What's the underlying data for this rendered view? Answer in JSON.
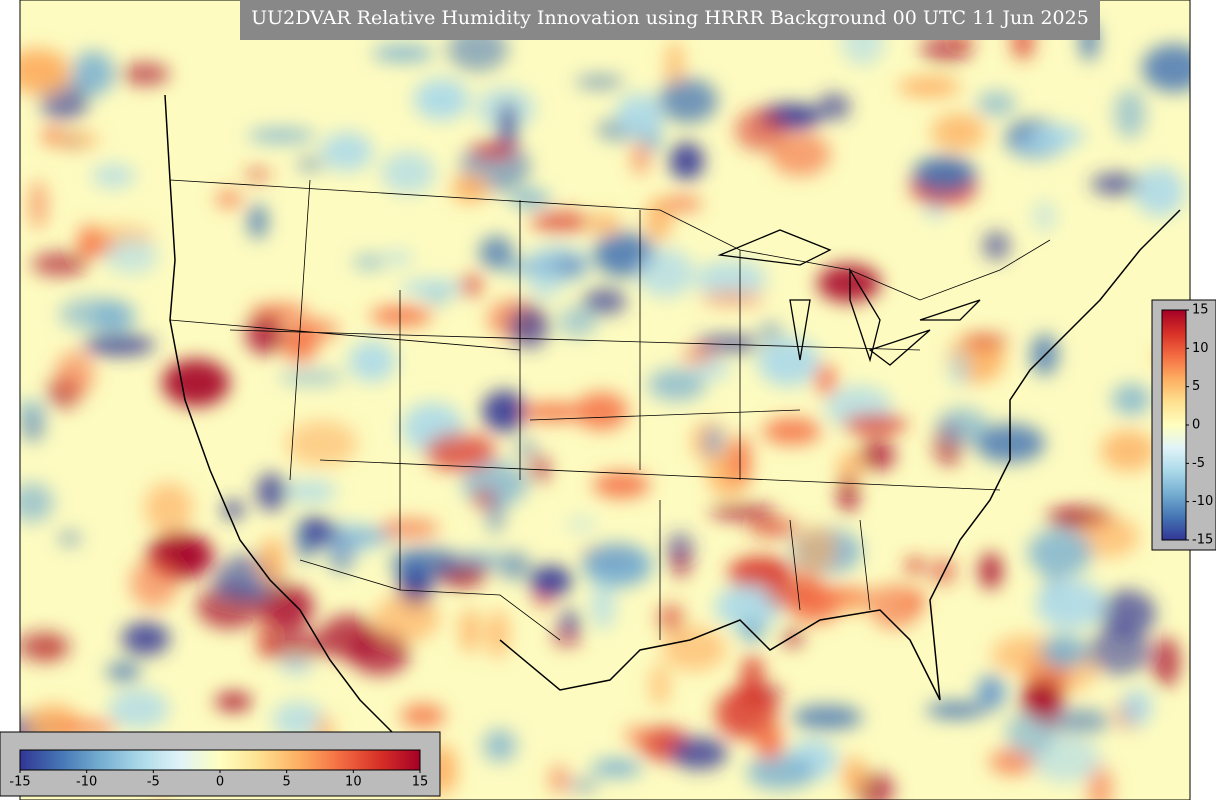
{
  "title": "UU2DVAR Relative Humidity Innovation using HRRR Background 00 UTC 11 Jun 2025",
  "colorbars": [
    {
      "orientation": "horizontal",
      "range": [
        -15,
        15
      ],
      "ticks": [
        -15,
        -10,
        -5,
        0,
        5,
        10,
        15
      ]
    },
    {
      "orientation": "vertical",
      "range": [
        -15,
        15
      ],
      "ticks": [
        15,
        10,
        5,
        0,
        -5,
        -10,
        -15
      ]
    }
  ],
  "colormap": [
    "#313695",
    "#4575b4",
    "#74add1",
    "#abd9e9",
    "#e0f3f8",
    "#ffffbf",
    "#fee090",
    "#fdae61",
    "#f46d43",
    "#d73027",
    "#a50026"
  ]
}
